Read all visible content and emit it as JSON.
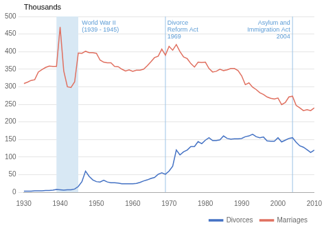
{
  "chart_data": {
    "type": "line",
    "ylabel": "Thousands",
    "x": [
      1930,
      1931,
      1932,
      1933,
      1934,
      1935,
      1936,
      1937,
      1938,
      1939,
      1940,
      1941,
      1942,
      1943,
      1944,
      1945,
      1946,
      1947,
      1948,
      1949,
      1950,
      1951,
      1952,
      1953,
      1954,
      1955,
      1956,
      1957,
      1958,
      1959,
      1960,
      1961,
      1962,
      1963,
      1964,
      1965,
      1966,
      1967,
      1968,
      1969,
      1970,
      1971,
      1972,
      1973,
      1974,
      1975,
      1976,
      1977,
      1978,
      1979,
      1980,
      1981,
      1982,
      1983,
      1984,
      1985,
      1986,
      1987,
      1988,
      1989,
      1990,
      1991,
      1992,
      1993,
      1994,
      1995,
      1996,
      1997,
      1998,
      1999,
      2000,
      2001,
      2002,
      2003,
      2004,
      2005,
      2006,
      2007,
      2008,
      2009,
      2010
    ],
    "series": [
      {
        "name": "Divorces",
        "color": "#4472c4",
        "values": [
          3,
          3,
          3,
          4,
          4,
          4,
          5,
          5,
          6,
          8,
          7,
          6,
          7,
          7,
          9,
          16,
          30,
          60,
          45,
          35,
          30,
          29,
          34,
          29,
          27,
          27,
          26,
          24,
          24,
          24,
          24,
          25,
          28,
          32,
          35,
          39,
          42,
          51,
          55,
          51,
          60,
          74,
          120,
          106,
          115,
          120,
          130,
          130,
          144,
          138,
          148,
          155,
          147,
          147,
          149,
          160,
          153,
          151,
          152,
          152,
          153,
          158,
          160,
          165,
          158,
          155,
          157,
          146,
          145,
          145,
          155,
          143,
          148,
          153,
          155,
          142,
          132,
          128,
          121,
          113,
          120
        ]
      },
      {
        "name": "Marriages",
        "color": "#e07060",
        "values": [
          309,
          313,
          318,
          320,
          342,
          349,
          355,
          359,
          358,
          358,
          470,
          345,
          300,
          298,
          314,
          396,
          395,
          401,
          397,
          397,
          395,
          376,
          370,
          368,
          368,
          358,
          357,
          350,
          345,
          348,
          344,
          347,
          347,
          350,
          360,
          371,
          383,
          387,
          407,
          390,
          415,
          404,
          420,
          400,
          385,
          380,
          366,
          356,
          370,
          369,
          370,
          352,
          342,
          344,
          350,
          346,
          348,
          352,
          352,
          346,
          331,
          306,
          311,
          299,
          292,
          283,
          278,
          271,
          267,
          265,
          268,
          249,
          255,
          271,
          273,
          247,
          240,
          232,
          235,
          232,
          240
        ]
      }
    ],
    "xlim": [
      1930,
      2010
    ],
    "ylim": [
      0,
      500
    ],
    "xticks": [
      1930,
      1940,
      1950,
      1960,
      1970,
      1980,
      1990,
      2000,
      2010
    ],
    "yticks": [
      0,
      50,
      100,
      150,
      200,
      250,
      300,
      350,
      400,
      450,
      500
    ],
    "grid": "y",
    "legend": "lower right",
    "spans": [
      {
        "x": [
          1939,
          1945
        ],
        "color": "#d8e8f4"
      }
    ],
    "vlines": [
      {
        "x": 1969,
        "color": "#9dc3e6"
      },
      {
        "x": 2004,
        "color": "#9dc3e6"
      }
    ],
    "annotations": [
      {
        "text": "World War II\n(1939 - 1945)",
        "x": 1946,
        "y": 490,
        "color": "#5b9bd5"
      },
      {
        "text": "Divorce\nReform Act\n1969",
        "x": 1969.5,
        "y": 490,
        "color": "#5b9bd5"
      },
      {
        "text": "Asylum and\nImmigration Act\n2004",
        "x": 2004.5,
        "y": 490,
        "color": "#5b9bd5"
      }
    ]
  }
}
